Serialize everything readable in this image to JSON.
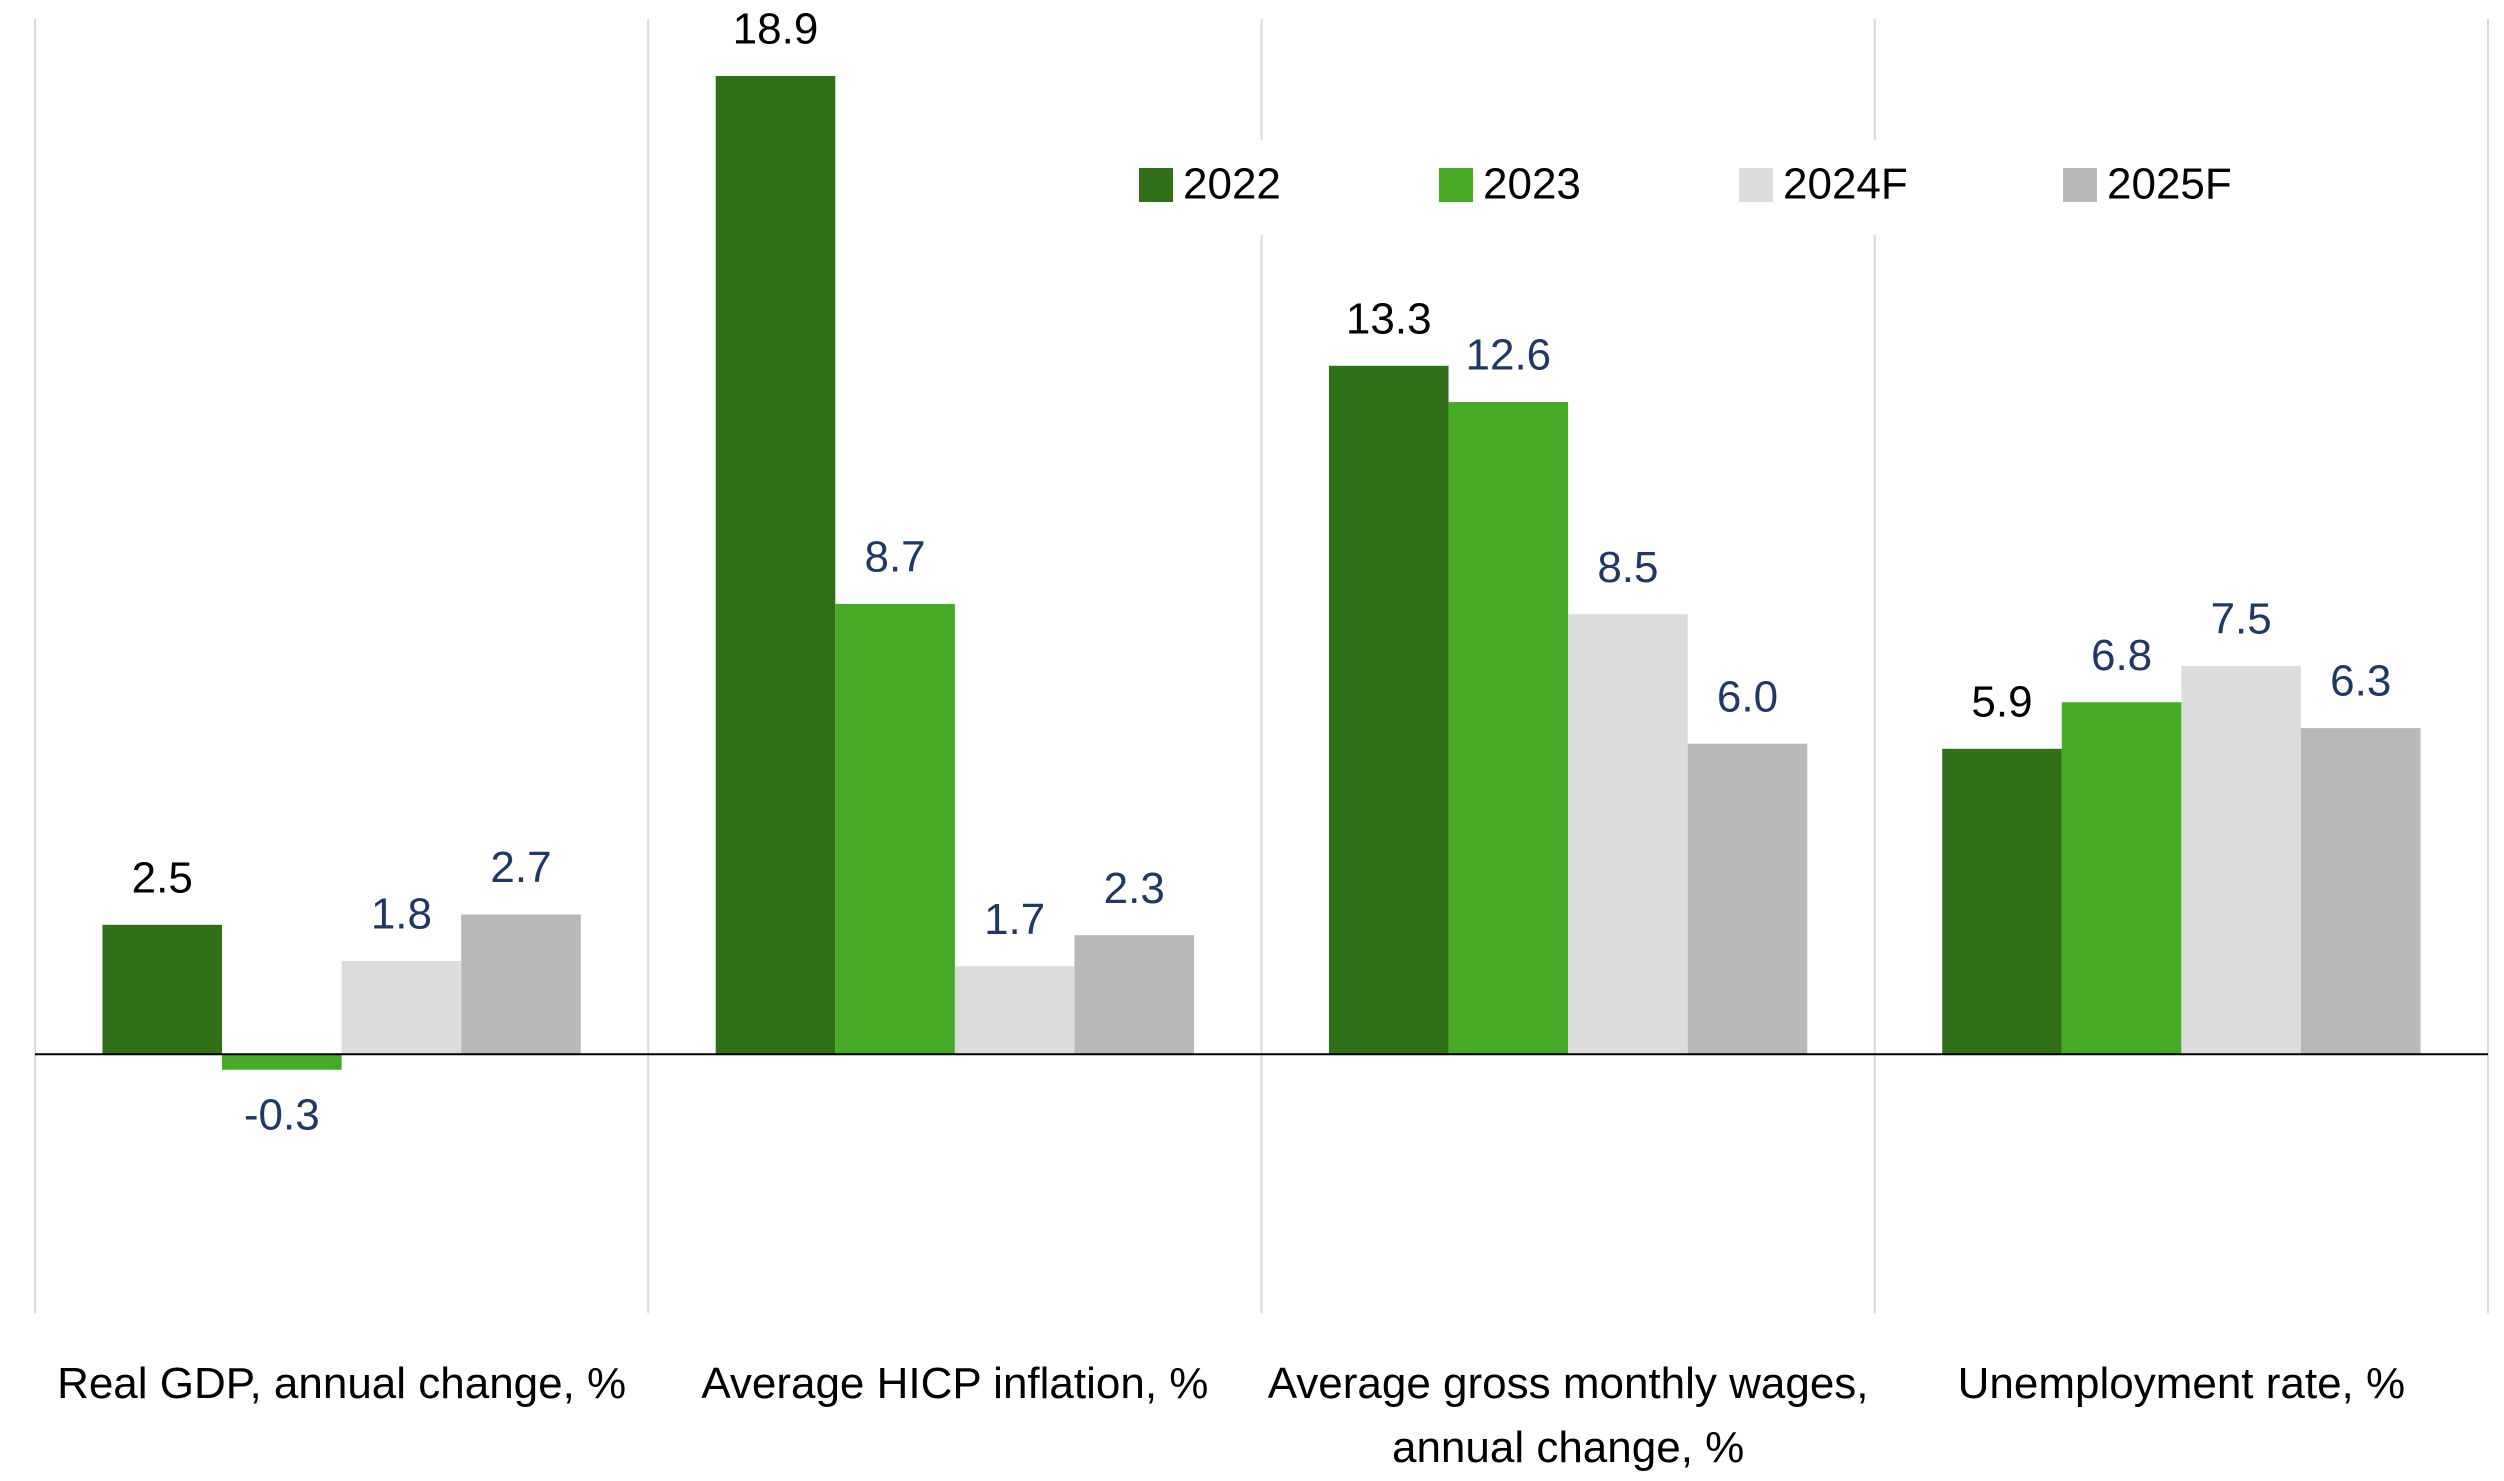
{
  "chart_data": {
    "type": "bar",
    "categories": [
      "Real GDP, annual change, %",
      "Average HICP inflation, %",
      "Average gross monthly wages, annual change, %",
      "Unemployment rate, %"
    ],
    "series": [
      {
        "name": "2022",
        "color": "#2f7019",
        "label_color": "#000000",
        "values": [
          2.5,
          18.9,
          13.3,
          5.9
        ],
        "value_labels": [
          "2.5",
          "18.9",
          "13.3",
          "5.9"
        ]
      },
      {
        "name": "2023",
        "color": "#46aa26",
        "label_color": "#1f3864",
        "values": [
          -0.3,
          8.7,
          12.6,
          6.8
        ],
        "value_labels": [
          "-0.3",
          "8.7",
          "12.6",
          "6.8"
        ]
      },
      {
        "name": "2024F",
        "color": "#dcdcdc",
        "label_color": "#1f3864",
        "values": [
          1.8,
          1.7,
          8.5,
          7.5
        ],
        "value_labels": [
          "1.8",
          "1.7",
          "8.5",
          "7.5"
        ]
      },
      {
        "name": "2025F",
        "color": "#b8b8b8",
        "label_color": "#1f3864",
        "values": [
          2.7,
          2.3,
          6.0,
          6.3
        ],
        "value_labels": [
          "2.7",
          "2.3",
          "6.0",
          "6.3"
        ]
      }
    ],
    "ylim": [
      -5,
      20
    ],
    "legend": "top-right"
  }
}
